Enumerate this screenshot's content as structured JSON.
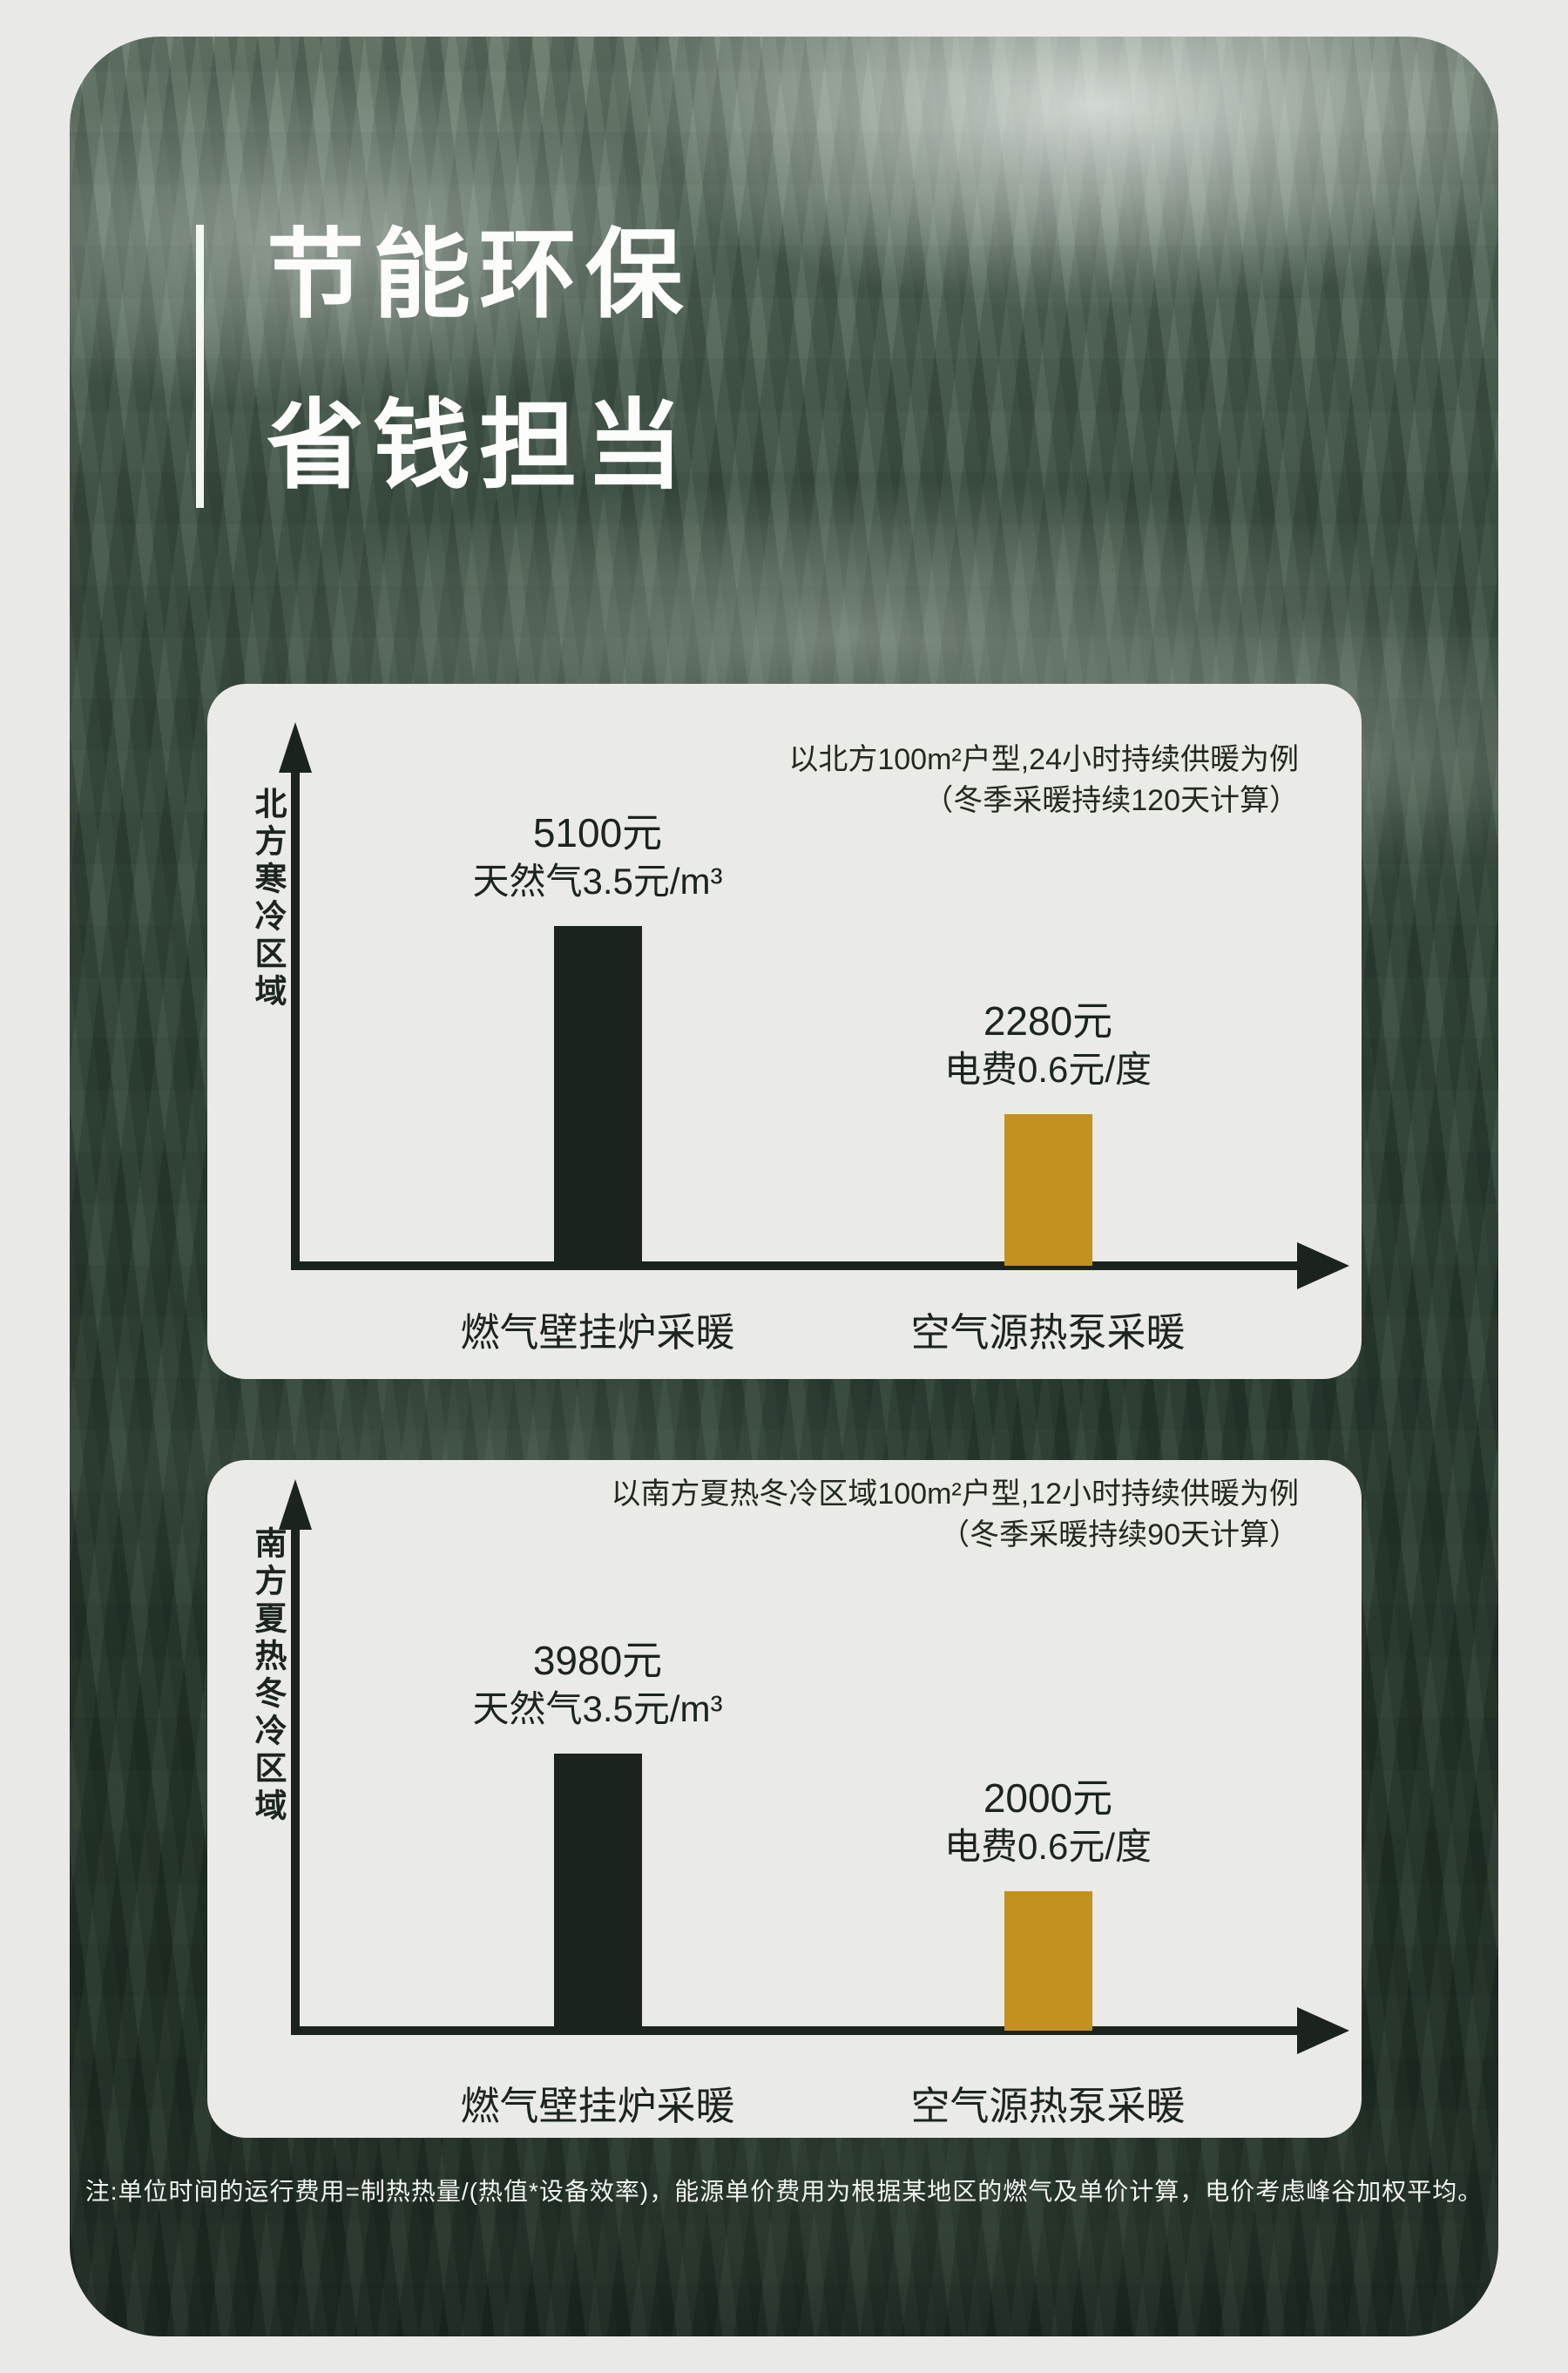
{
  "title": {
    "line1": "节能环保",
    "line2": "省钱担当"
  },
  "colors": {
    "bar_dark": "#1b231d",
    "bar_gold": "#c4901f",
    "card_bg": "#eaeae7",
    "text_dark": "#1c241e",
    "text_light": "#f1f3ef"
  },
  "charts": [
    {
      "region_label": "北方寒冷区域",
      "note_line1": "以北方100m²户型,24小时持续供暖为例",
      "note_line2": "（冬季采暖持续120天计算）",
      "bars": [
        {
          "value": 5100,
          "value_label": "5100元",
          "price_label": "天然气3.5元/m³",
          "category": "燃气壁挂炉采暖",
          "color": "#1b231d"
        },
        {
          "value": 2280,
          "value_label": "2280元",
          "price_label": "电费0.6元/度",
          "category": "空气源热泵采暖",
          "color": "#c4901f"
        }
      ]
    },
    {
      "region_label": "南方夏热冬冷区域",
      "note_line1": "以南方夏热冬冷区域100m²户型,12小时持续供暖为例",
      "note_line2": "（冬季采暖持续90天计算）",
      "bars": [
        {
          "value": 3980,
          "value_label": "3980元",
          "price_label": "天然气3.5元/m³",
          "category": "燃气壁挂炉采暖",
          "color": "#1b231d"
        },
        {
          "value": 2000,
          "value_label": "2000元",
          "price_label": "电费0.6元/度",
          "category": "空气源热泵采暖",
          "color": "#c4901f"
        }
      ]
    }
  ],
  "footnote": "注:单位时间的运行费用=制热热量/(热值*设备效率)，能源单价费用为根据某地区的燃气及单价计算，电价考虑峰谷加权平均。",
  "chart_data": [
    {
      "type": "bar",
      "title": "北方寒冷区域",
      "subtitle": "以北方100m²户型,24小时持续供暖为例（冬季采暖持续120天计算）",
      "categories": [
        "燃气壁挂炉采暖",
        "空气源热泵采暖"
      ],
      "values": [
        5100,
        2280
      ],
      "value_annotations": [
        "5100元 天然气3.5元/m³",
        "2280元 电费0.6元/度"
      ],
      "unit": "元",
      "xlabel": "",
      "ylabel": "",
      "ylim": [
        0,
        5500
      ],
      "grid": false,
      "legend": "none",
      "bar_colors": [
        "#1b231d",
        "#c4901f"
      ]
    },
    {
      "type": "bar",
      "title": "南方夏热冬冷区域",
      "subtitle": "以南方夏热冬冷区域100m²户型,12小时持续供暖为例（冬季采暖持续90天计算）",
      "categories": [
        "燃气壁挂炉采暖",
        "空气源热泵采暖"
      ],
      "values": [
        3980,
        2000
      ],
      "value_annotations": [
        "3980元 天然气3.5元/m³",
        "2000元 电费0.6元/度"
      ],
      "unit": "元",
      "xlabel": "",
      "ylabel": "",
      "ylim": [
        0,
        4400
      ],
      "grid": false,
      "legend": "none",
      "bar_colors": [
        "#1b231d",
        "#c4901f"
      ]
    }
  ]
}
